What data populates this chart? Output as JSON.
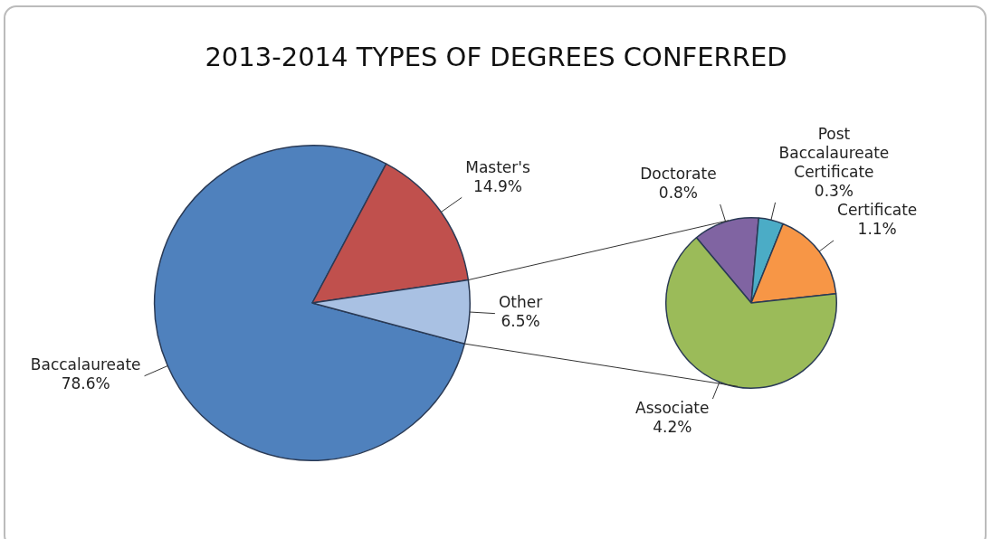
{
  "chart_data": [
    {
      "type": "pie",
      "title": "2013-2014 TYPES OF DEGREES CONFERRED",
      "categories": [
        "Baccalaureate",
        "Master's",
        "Other"
      ],
      "values": [
        78.6,
        14.9,
        6.5
      ],
      "value_labels": [
        "78.6%",
        "14.9%",
        "6.5%"
      ],
      "colors": [
        "#4f81bd",
        "#c0504d",
        "#a9c1e3"
      ],
      "legend": false
    },
    {
      "type": "pie",
      "categories": [
        "Doctorate",
        "Post Baccalaureate Certificate",
        "Certificate",
        "Associate"
      ],
      "values": [
        0.8,
        0.3,
        1.1,
        4.2
      ],
      "value_labels": [
        "0.8%",
        "0.3%",
        "1.1%",
        "4.2%"
      ],
      "colors": [
        "#8064a2",
        "#4bacc6",
        "#f79646",
        "#9bbb59"
      ],
      "legend": false
    }
  ]
}
